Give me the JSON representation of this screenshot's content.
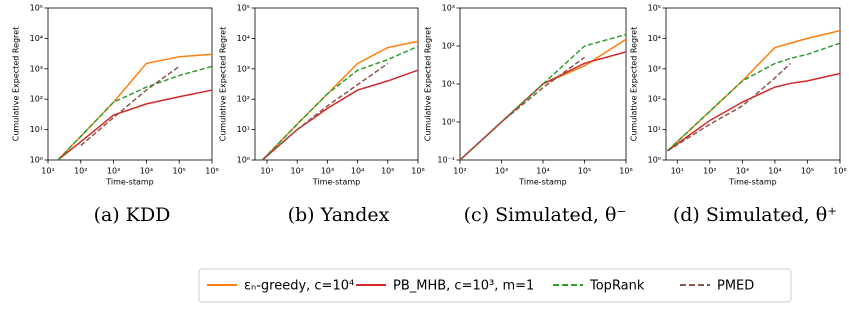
{
  "chart_data": [
    {
      "type": "line",
      "caption": "(a) KDD",
      "xlabel": "Time-stamp",
      "ylabel": "Cumulative Expected Regret",
      "xscale": "log",
      "yscale": "log",
      "xlim": [
        10,
        1000000
      ],
      "ylim": [
        1,
        100000
      ],
      "xticks": [
        {
          "value": 10,
          "label": "10¹"
        },
        {
          "value": 100,
          "label": "10²"
        },
        {
          "value": 1000,
          "label": "10³"
        },
        {
          "value": 10000,
          "label": "10⁴"
        },
        {
          "value": 100000,
          "label": "10⁵"
        },
        {
          "value": 1000000,
          "label": "10⁶"
        }
      ],
      "yticks": [
        {
          "value": 1,
          "label": "10⁰"
        },
        {
          "value": 10,
          "label": "10¹"
        },
        {
          "value": 100,
          "label": "10²"
        },
        {
          "value": 1000,
          "label": "10³"
        },
        {
          "value": 10000,
          "label": "10⁴"
        },
        {
          "value": 100000,
          "label": "10⁵"
        }
      ],
      "x": [
        20,
        100,
        1000,
        10000,
        100000,
        1000000
      ],
      "series": [
        {
          "values": [
            1,
            6,
            80,
            1500,
            2500,
            3000
          ]
        },
        {
          "values": [
            1,
            4,
            30,
            70,
            120,
            200
          ]
        },
        {
          "values": [
            1,
            6,
            80,
            250,
            600,
            1200
          ]
        },
        {
          "values": [
            null,
            3,
            25,
            200,
            1200,
            null
          ]
        }
      ]
    },
    {
      "type": "line",
      "caption": "(b) Yandex",
      "xlabel": "Time-stamp",
      "ylabel": "Cumulative Expected Regret",
      "xscale": "log",
      "yscale": "log",
      "xlim": [
        4,
        1000000
      ],
      "ylim": [
        1,
        100000
      ],
      "xticks": [
        {
          "value": 10,
          "label": "10¹"
        },
        {
          "value": 100,
          "label": "10²"
        },
        {
          "value": 1000,
          "label": "10³"
        },
        {
          "value": 10000,
          "label": "10⁴"
        },
        {
          "value": 100000,
          "label": "10⁵"
        },
        {
          "value": 1000000,
          "label": "10⁶"
        }
      ],
      "yticks": [
        {
          "value": 1,
          "label": "10⁰"
        },
        {
          "value": 10,
          "label": "10¹"
        },
        {
          "value": 100,
          "label": "10²"
        },
        {
          "value": 1000,
          "label": "10³"
        },
        {
          "value": 10000,
          "label": "10⁴"
        },
        {
          "value": 100000,
          "label": "10⁵"
        }
      ],
      "x": [
        7,
        100,
        1000,
        10000,
        100000,
        1000000
      ],
      "series": [
        {
          "values": [
            1,
            15,
            150,
            1500,
            5000,
            8000
          ]
        },
        {
          "values": [
            1,
            10,
            50,
            200,
            400,
            900
          ]
        },
        {
          "values": [
            1,
            15,
            150,
            900,
            2000,
            5500
          ]
        },
        {
          "values": [
            1,
            10,
            60,
            300,
            1500,
            null
          ]
        }
      ]
    },
    {
      "type": "line",
      "caption": "(c) Simulated, θ⁻",
      "xlabel": "Time-stamp",
      "ylabel": "Cumulative Expected Regret",
      "xscale": "log",
      "yscale": "log",
      "xlim": [
        100,
        1000000
      ],
      "ylim": [
        0.1,
        1000
      ],
      "xticks": [
        {
          "value": 100,
          "label": "10²"
        },
        {
          "value": 1000,
          "label": "10³"
        },
        {
          "value": 10000,
          "label": "10⁴"
        },
        {
          "value": 100000,
          "label": "10⁵"
        },
        {
          "value": 1000000,
          "label": "10⁶"
        }
      ],
      "yticks": [
        {
          "value": 0.1,
          "label": "10⁻¹"
        },
        {
          "value": 1,
          "label": "10⁰"
        },
        {
          "value": 10,
          "label": "10¹"
        },
        {
          "value": 100,
          "label": "10²"
        },
        {
          "value": 1000,
          "label": "10³"
        }
      ],
      "x": [
        100,
        1000,
        10000,
        100000,
        1000000
      ],
      "series": [
        {
          "values": [
            0.1,
            1,
            10,
            30,
            150
          ]
        },
        {
          "values": [
            0.1,
            1,
            10,
            35,
            70
          ]
        },
        {
          "values": [
            0.1,
            1,
            10,
            100,
            200
          ]
        },
        {
          "values": [
            0.1,
            1,
            8,
            50,
            null
          ]
        }
      ]
    },
    {
      "type": "line",
      "caption": "(d) Simulated, θ⁺",
      "xlabel": "Time-stamp",
      "ylabel": "Cumulative Expected Regret",
      "xscale": "log",
      "yscale": "log",
      "xlim": [
        4.5,
        1000000
      ],
      "ylim": [
        1,
        100000
      ],
      "xticks": [
        {
          "value": 10,
          "label": "10¹"
        },
        {
          "value": 100,
          "label": "10²"
        },
        {
          "value": 1000,
          "label": "10³"
        },
        {
          "value": 10000,
          "label": "10⁴"
        },
        {
          "value": 100000,
          "label": "10⁵"
        },
        {
          "value": 1000000,
          "label": "10⁶"
        }
      ],
      "yticks": [
        {
          "value": 1,
          "label": "10⁰"
        },
        {
          "value": 10,
          "label": "10¹"
        },
        {
          "value": 100,
          "label": "10²"
        },
        {
          "value": 1000,
          "label": "10³"
        },
        {
          "value": 10000,
          "label": "10⁴"
        },
        {
          "value": 100000,
          "label": "10⁵"
        }
      ],
      "x": [
        5,
        100,
        1000,
        10000,
        30000,
        100000,
        1000000
      ],
      "series": [
        {
          "values": [
            2,
            40,
            400,
            5000,
            7000,
            10000,
            18000
          ]
        },
        {
          "values": [
            2,
            20,
            80,
            250,
            330,
            400,
            700
          ]
        },
        {
          "values": [
            2,
            40,
            400,
            1500,
            2200,
            3000,
            7000
          ]
        },
        {
          "values": [
            2,
            15,
            60,
            500,
            1500,
            null,
            null
          ]
        }
      ]
    }
  ],
  "legend": [
    {
      "name": "εₙ-greedy, c=10⁴",
      "color": "#ff7f0e",
      "linestyle": "solid"
    },
    {
      "name": "PB_MHB, c=10³, m=1",
      "color": "#d62728",
      "linestyle": "solid"
    },
    {
      "name": "TopRank",
      "color": "#2ca02c",
      "linestyle": "dashed"
    },
    {
      "name": "PMED",
      "color": "#8c564b",
      "linestyle": "dashed"
    }
  ]
}
